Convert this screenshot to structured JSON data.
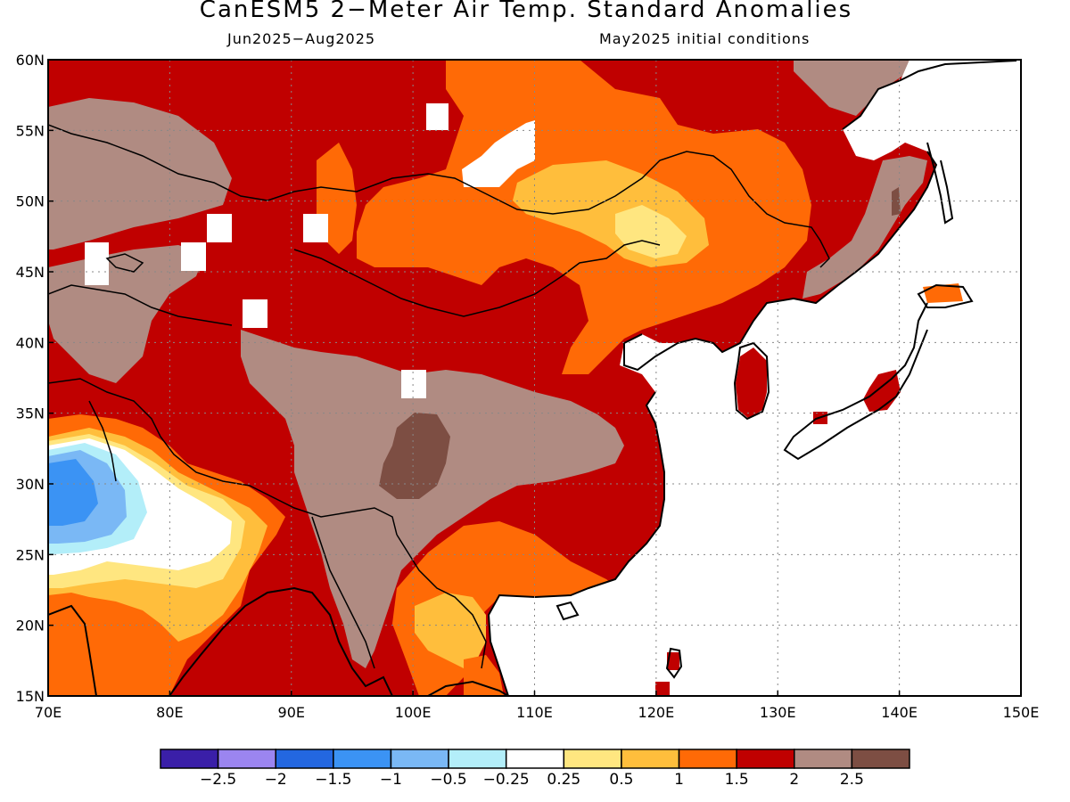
{
  "title": "CanESM5 2−Meter Air Temp. Standard Anomalies",
  "subtitle_left": "Jun2025−Aug2025",
  "subtitle_right": "May2025 initial conditions",
  "map": {
    "lon_range": [
      70,
      150
    ],
    "lat_range": [
      15,
      60
    ],
    "x_ticks": [
      "70E",
      "80E",
      "90E",
      "100E",
      "110E",
      "120E",
      "130E",
      "140E",
      "150E"
    ],
    "y_ticks": [
      "15N",
      "20N",
      "25N",
      "30N",
      "35N",
      "40N",
      "45N",
      "50N",
      "55N",
      "60N"
    ],
    "gridlines": "dotted"
  },
  "colorbar": {
    "colors": [
      "#3a1fa8",
      "#9b85f0",
      "#2367e0",
      "#3b93f4",
      "#7ab8f5",
      "#b3eef9",
      "#ffffff",
      "#ffe680",
      "#ffbe3c",
      "#ff6a06",
      "#c00000",
      "#b08b82",
      "#7d4e43"
    ],
    "labels": [
      "−2.5",
      "−2",
      "−1.5",
      "−1",
      "−0.5",
      "−0.25",
      "0.25",
      "0.5",
      "1",
      "1.5",
      "2",
      "2.5"
    ]
  }
}
